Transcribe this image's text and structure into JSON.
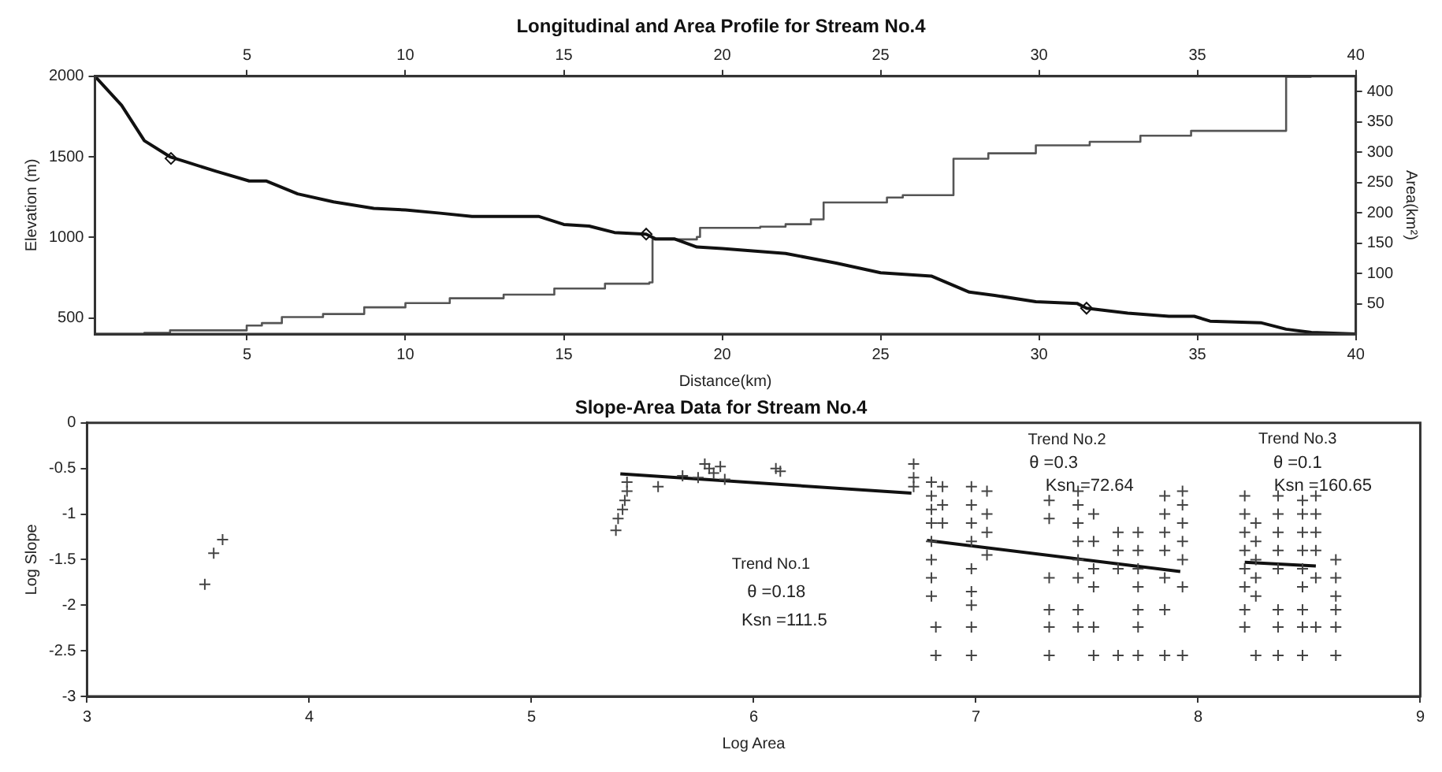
{
  "chart_data": [
    {
      "type": "line",
      "title": "Longitudinal and Area Profile for Stream No.4",
      "xlabel": "Distance(km)",
      "ylabel": "Elevation (m)",
      "y2label": "Area(km²)",
      "xlim": [
        0.2,
        40
      ],
      "xticks": [
        5,
        10,
        15,
        20,
        25,
        30,
        35,
        40
      ],
      "x2lim": [
        0.2,
        40
      ],
      "x2ticks": [
        5,
        10,
        15,
        20,
        25,
        30,
        35,
        40
      ],
      "ylim": [
        400,
        2000
      ],
      "yticks": [
        500,
        1000,
        1500,
        2000
      ],
      "y2lim": [
        0,
        425
      ],
      "y2ticks": [
        50,
        100,
        150,
        200,
        250,
        300,
        350,
        400
      ],
      "grid": false,
      "legend": false,
      "series": [
        {
          "type": "line",
          "color": "#111111",
          "marker": "none",
          "x": [
            0.2,
            1.04,
            1.76,
            2.57,
            3.05,
            4.02,
            5.07,
            5.6,
            6.6,
            7.73,
            9.0,
            10.0,
            11.1,
            12.1,
            14.2,
            15.0,
            15.8,
            16.6,
            17.6,
            17.9,
            18.5,
            19.2,
            20.0,
            22.0,
            23.6,
            25.0,
            26.6,
            27.8,
            28.6,
            29.9,
            31.2,
            31.5,
            32.8,
            34.1,
            34.9,
            35.4,
            37.0,
            37.8,
            38.6,
            40.0
          ],
          "values": [
            2000,
            1820,
            1600,
            1500,
            1470,
            1410,
            1350,
            1350,
            1270,
            1220,
            1180,
            1170,
            1150,
            1130,
            1130,
            1080,
            1070,
            1030,
            1020,
            990,
            990,
            940,
            930,
            900,
            840,
            780,
            760,
            660,
            640,
            600,
            590,
            560,
            530,
            510,
            510,
            480,
            470,
            430,
            410,
            400
          ]
        },
        {
          "type": "step",
          "axis": "y2",
          "color": "#555555",
          "marker": "none",
          "x": [
            0.2,
            1.76,
            2.57,
            4.99,
            5.47,
            6.1,
            7.4,
            8.7,
            10.0,
            11.4,
            13.1,
            14.7,
            16.3,
            17.7,
            17.8,
            19.2,
            19.3,
            21.2,
            22.0,
            22.8,
            23.2,
            25.2,
            25.7,
            27.3,
            28.4,
            29.9,
            31.6,
            33.2,
            34.8,
            37.8,
            38.6
          ],
          "values": [
            0,
            2,
            6,
            14,
            18,
            28,
            33,
            44,
            51,
            59,
            65,
            75,
            83,
            85,
            156,
            160,
            175,
            177,
            181,
            189,
            217,
            225,
            229,
            289,
            298,
            311,
            317,
            327,
            335,
            424,
            424
          ]
        },
        {
          "type": "scatter",
          "color": "#111111",
          "marker": "diamond",
          "x": [
            2.6,
            17.6,
            31.5
          ],
          "values": [
            1490,
            1020,
            560
          ]
        }
      ]
    },
    {
      "type": "scatter",
      "title": "Slope-Area Data for Stream No.4",
      "xlabel": "Log Area",
      "ylabel": "Log Slope",
      "xlim": [
        3,
        9
      ],
      "xticks": [
        3,
        4,
        5,
        6,
        7,
        8,
        9
      ],
      "ylim": [
        -3,
        0
      ],
      "yticks": [
        -3,
        -2.5,
        -2,
        -1.5,
        -1,
        -0.5,
        0
      ],
      "grid": false,
      "legend": false,
      "annotations": [
        "Trend No.1",
        "θ =0.18",
        "Ksn =111.5",
        "Trend No.2",
        "θ =0.3",
        "Ksn =72.64",
        "Trend No.3",
        "θ =0.1",
        "Ksn =160.65"
      ],
      "series": [
        {
          "color": "#444444",
          "marker": "cross",
          "x": [
            3.53,
            3.57,
            3.61,
            5.38,
            5.39,
            5.41,
            5.42,
            5.43,
            5.43,
            5.57,
            5.68,
            5.75,
            5.78,
            5.8,
            5.82,
            5.85,
            5.87,
            6.1,
            6.12,
            6.72,
            6.72,
            6.72,
            6.8,
            6.8,
            6.8,
            6.8,
            6.8,
            6.8,
            6.8,
            6.8,
            6.82,
            6.82,
            6.85,
            6.85,
            6.85,
            6.98,
            6.98,
            6.98,
            6.98,
            6.98,
            6.98,
            6.98,
            6.98,
            6.98,
            7.05,
            7.05,
            7.05,
            7.05,
            7.33,
            7.33,
            7.33,
            7.33,
            7.33,
            7.33,
            7.46,
            7.46,
            7.46,
            7.46,
            7.46,
            7.46,
            7.46,
            7.46,
            7.53,
            7.53,
            7.53,
            7.53,
            7.53,
            7.53,
            7.64,
            7.64,
            7.64,
            7.64,
            7.73,
            7.73,
            7.73,
            7.73,
            7.73,
            7.73,
            7.73,
            7.85,
            7.85,
            7.85,
            7.85,
            7.85,
            7.85,
            7.85,
            7.93,
            7.93,
            7.93,
            7.93,
            7.93,
            7.93,
            7.93,
            8.21,
            8.21,
            8.21,
            8.21,
            8.21,
            8.21,
            8.21,
            8.21,
            8.26,
            8.26,
            8.26,
            8.26,
            8.26,
            8.26,
            8.36,
            8.36,
            8.36,
            8.36,
            8.36,
            8.36,
            8.36,
            8.36,
            8.47,
            8.47,
            8.47,
            8.47,
            8.47,
            8.47,
            8.47,
            8.47,
            8.47,
            8.53,
            8.53,
            8.53,
            8.53,
            8.53,
            8.53,
            8.62,
            8.62,
            8.62,
            8.62,
            8.62,
            8.62
          ],
          "values": [
            -1.77,
            -1.43,
            -1.28,
            -1.18,
            -1.05,
            -0.95,
            -0.85,
            -0.75,
            -0.65,
            -0.7,
            -0.58,
            -0.6,
            -0.45,
            -0.5,
            -0.55,
            -0.48,
            -0.62,
            -0.5,
            -0.53,
            -0.45,
            -0.6,
            -0.7,
            -0.65,
            -0.8,
            -0.95,
            -1.1,
            -1.3,
            -1.5,
            -1.7,
            -1.9,
            -2.24,
            -2.55,
            -0.7,
            -0.9,
            -1.1,
            -0.7,
            -0.9,
            -1.1,
            -1.3,
            -1.6,
            -1.85,
            -2.0,
            -2.24,
            -2.55,
            -0.75,
            -1.0,
            -1.2,
            -1.45,
            -0.85,
            -1.05,
            -1.7,
            -2.05,
            -2.24,
            -2.55,
            -0.75,
            -0.9,
            -1.1,
            -1.3,
            -1.5,
            -1.7,
            -2.05,
            -2.24,
            -1.0,
            -1.3,
            -1.6,
            -1.8,
            -2.24,
            -2.55,
            -1.2,
            -1.4,
            -1.6,
            -2.55,
            -1.2,
            -1.4,
            -1.6,
            -1.8,
            -2.05,
            -2.24,
            -2.55,
            -0.8,
            -1.0,
            -1.2,
            -1.4,
            -1.7,
            -2.05,
            -2.55,
            -0.75,
            -0.9,
            -1.1,
            -1.3,
            -1.5,
            -1.8,
            -2.55,
            -0.8,
            -1.0,
            -1.2,
            -1.4,
            -1.6,
            -1.8,
            -2.05,
            -2.24,
            -1.1,
            -1.3,
            -1.5,
            -1.7,
            -1.9,
            -2.55,
            -0.8,
            -1.0,
            -1.2,
            -1.4,
            -1.6,
            -2.05,
            -2.24,
            -2.55,
            -0.85,
            -1.0,
            -1.2,
            -1.4,
            -1.6,
            -1.8,
            -2.05,
            -2.24,
            -2.55,
            -0.8,
            -1.0,
            -1.2,
            -1.4,
            -1.7,
            -2.24,
            -1.5,
            -1.7,
            -1.9,
            -2.05,
            -2.24,
            -2.55
          ]
        },
        {
          "type": "line",
          "color": "#111111",
          "marker": "none",
          "x": [
            5.4,
            6.71
          ],
          "values": [
            -0.56,
            -0.77
          ]
        },
        {
          "type": "line",
          "color": "#111111",
          "marker": "none",
          "x": [
            6.78,
            7.92
          ],
          "values": [
            -1.29,
            -1.63
          ]
        },
        {
          "type": "line",
          "color": "#111111",
          "marker": "none",
          "x": [
            8.21,
            8.53
          ],
          "values": [
            -1.53,
            -1.57
          ]
        }
      ]
    }
  ]
}
